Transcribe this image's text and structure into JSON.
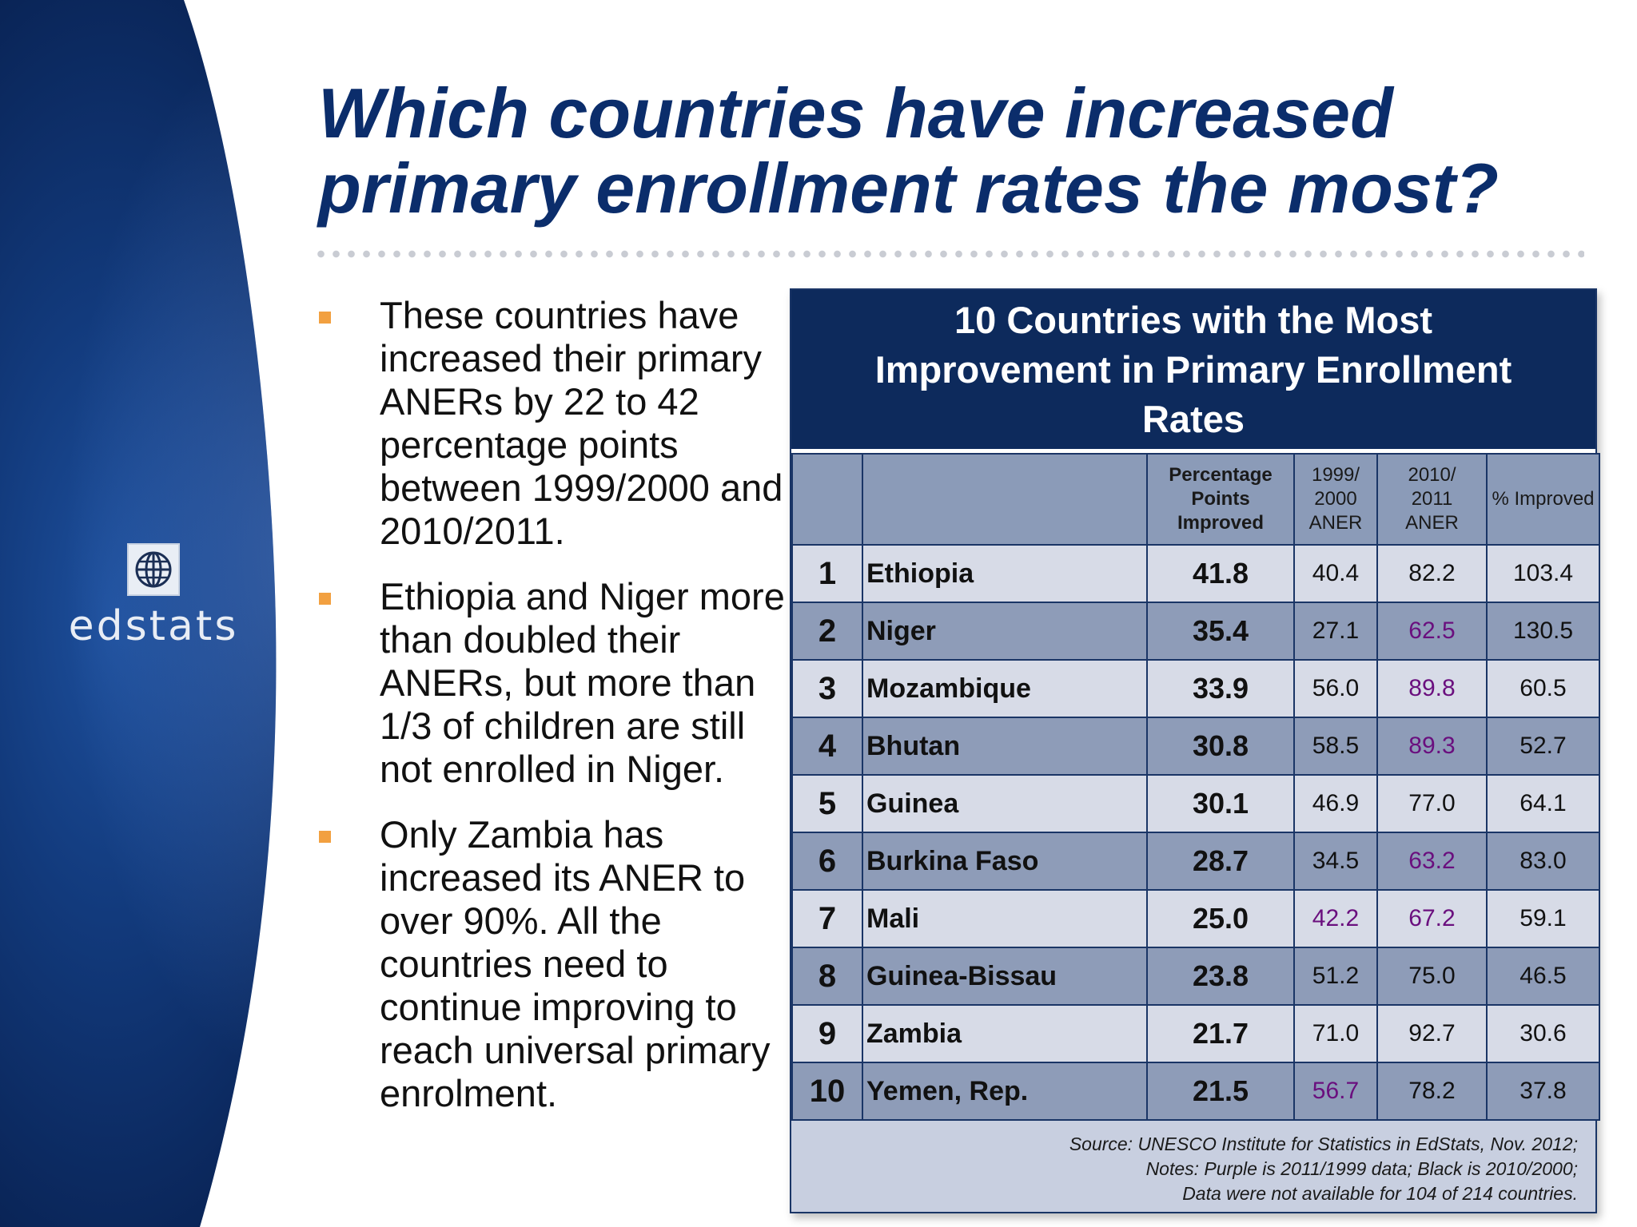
{
  "title_line1": "Which countries have increased",
  "title_line2": "primary enrollment rates the most?",
  "logo": {
    "text": "edstats",
    "icon": "globe-icon"
  },
  "bullets": [
    "These countries have increased their primary ANERs by 22 to 42 percentage points between 1999/2000 and 2010/2011.",
    "Ethiopia and Niger more than doubled their ANERs, but more than 1/3 of children are still not enrolled in Niger.",
    "Only Zambia has increased its ANER to over 90%. All the countries need to continue improving to reach universal primary enrolment."
  ],
  "table": {
    "title": "10 Countries with the Most Improvement in Primary Enrollment Rates",
    "headers": {
      "rank": "",
      "country": "",
      "points_l1": "Percentage",
      "points_l2": "Points",
      "points_l3": "Improved",
      "aner1_l1": "1999/",
      "aner1_l2": "2000",
      "aner1_l3": "ANER",
      "aner2_l1": "2010/",
      "aner2_l2": "2011",
      "aner2_l3": "ANER",
      "pct": "% Improved"
    },
    "rows": [
      {
        "rank": "1",
        "country": "Ethiopia",
        "points": "41.8",
        "aner1": "40.4",
        "aner2": "82.2",
        "pct": "103.4"
      },
      {
        "rank": "2",
        "country": "Niger",
        "points": "35.4",
        "aner1": "27.1",
        "aner2": "62.5",
        "pct": "130.5"
      },
      {
        "rank": "3",
        "country": "Mozambique",
        "points": "33.9",
        "aner1": "56.0",
        "aner2": "89.8",
        "pct": "60.5"
      },
      {
        "rank": "4",
        "country": "Bhutan",
        "points": "30.8",
        "aner1": "58.5",
        "aner2": "89.3",
        "pct": "52.7"
      },
      {
        "rank": "5",
        "country": "Guinea",
        "points": "30.1",
        "aner1": "46.9",
        "aner2": "77.0",
        "pct": "64.1"
      },
      {
        "rank": "6",
        "country": "Burkina Faso",
        "points": "28.7",
        "aner1": "34.5",
        "aner2": "63.2",
        "pct": "83.0"
      },
      {
        "rank": "7",
        "country": "Mali",
        "points": "25.0",
        "aner1": "42.2",
        "aner2": "67.2",
        "pct": "59.1"
      },
      {
        "rank": "8",
        "country": "Guinea-Bissau",
        "points": "23.8",
        "aner1": "51.2",
        "aner2": "75.0",
        "pct": "46.5"
      },
      {
        "rank": "9",
        "country": "Zambia",
        "points": "21.7",
        "aner1": "71.0",
        "aner2": "92.7",
        "pct": "30.6"
      },
      {
        "rank": "10",
        "country": "Yemen, Rep.",
        "points": "21.5",
        "aner1": "56.7",
        "aner2": "78.2",
        "pct": "37.8"
      }
    ],
    "source_l1": "Source:  UNESCO Institute for Statistics in EdStats, Nov. 2012;",
    "source_l2": "Notes: Purple is 2011/1999 data; Black is 2010/2000;",
    "source_l3": "Data were not available for 104 of 214 countries."
  },
  "colors": {
    "title": "#0b2d6b",
    "purple_values": "#6a0f7e",
    "bullet": "#f2a040",
    "table_header": "#0d2a5c"
  }
}
